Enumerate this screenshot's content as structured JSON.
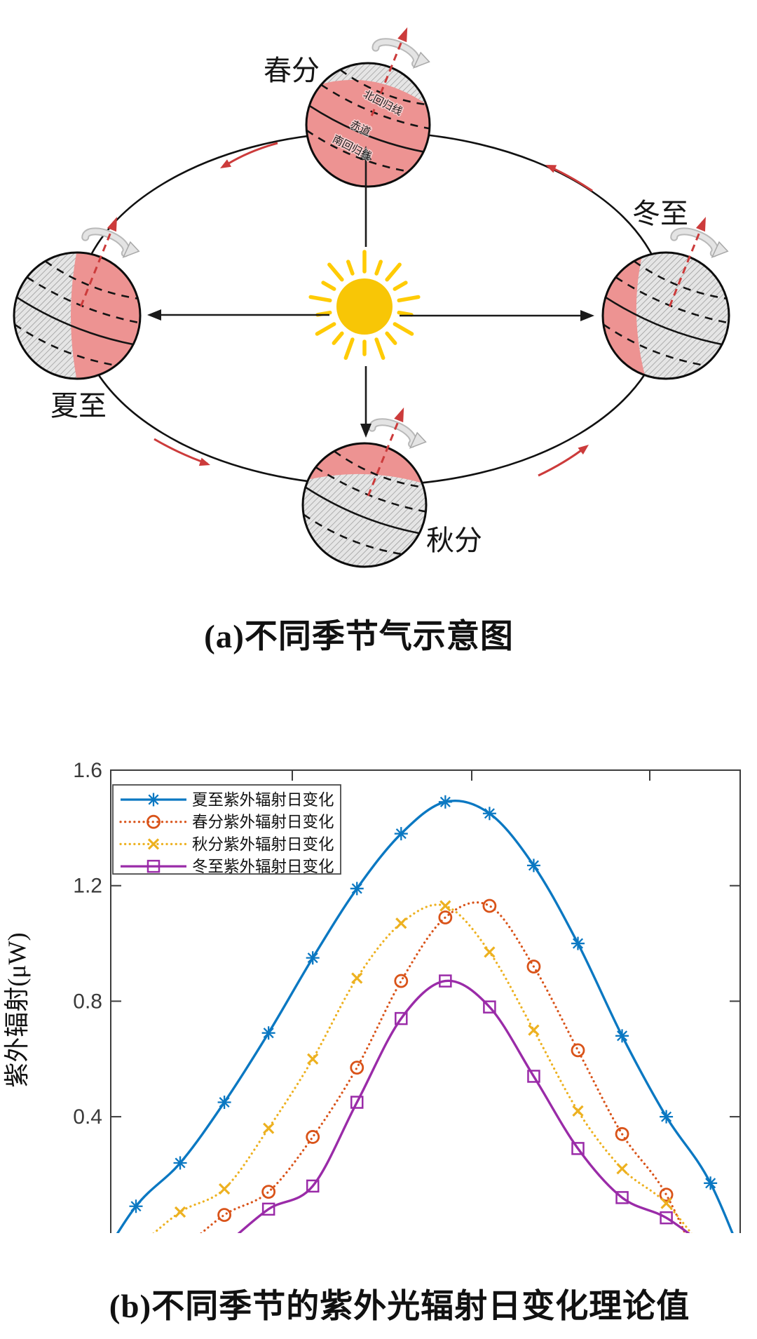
{
  "figure": {
    "caption_a": "(a)不同季节气示意图",
    "caption_b": "(b)不同季节的紫外光辐射日变化理论值"
  },
  "diagram": {
    "seasons": {
      "top": "春分",
      "left": "夏至",
      "right": "冬至",
      "bottom": "秋分"
    },
    "latitude_labels": {
      "tropic_of_cancer": "北回归线",
      "equator": "赤道",
      "tropic_of_capricorn": "南回归线"
    },
    "colors": {
      "day_side_pink": "#ED9392",
      "night_hatch": "#E5E5E5",
      "sun_yellow": "#F8C606",
      "revolution_arrow_red": "#CC3B3B"
    }
  },
  "chart_data": {
    "type": "line",
    "title": "",
    "xlabel": "",
    "ylabel": "紫外辐射(μW)",
    "ylim": [
      0,
      1.6
    ],
    "yticks": [
      1.6,
      1.2,
      0.8,
      0.4
    ],
    "grid": false,
    "box": true,
    "legend_position": "top-left",
    "x_unit": "time of day (hour, axis cropped in image)",
    "series": [
      {
        "name": "夏至紫外辐射日变化",
        "color": "#0B78C2",
        "line": "solid",
        "marker": "asterisk",
        "x": [
          6,
          7,
          8,
          9,
          10,
          11,
          12,
          13,
          14,
          15,
          16,
          17,
          18,
          19
        ],
        "values": [
          0.09,
          0.24,
          0.45,
          0.69,
          0.95,
          1.19,
          1.38,
          1.49,
          1.45,
          1.27,
          1.0,
          0.68,
          0.4,
          0.17
        ]
      },
      {
        "name": "春分紫外辐射日变化",
        "color": "#D95319",
        "line": "dotted",
        "marker": "circle",
        "x": [
          8,
          9,
          10,
          11,
          12,
          13,
          14,
          15,
          16,
          17,
          18
        ],
        "values": [
          0.06,
          0.14,
          0.33,
          0.57,
          0.87,
          1.09,
          1.13,
          0.92,
          0.63,
          0.34,
          0.13
        ]
      },
      {
        "name": "秋分紫外辐射日变化",
        "color": "#EDB120",
        "line": "dotted",
        "marker": "x",
        "x": [
          7,
          8,
          9,
          10,
          11,
          12,
          13,
          14,
          15,
          16,
          17,
          18
        ],
        "values": [
          0.07,
          0.15,
          0.36,
          0.6,
          0.88,
          1.07,
          1.13,
          0.97,
          0.7,
          0.42,
          0.22,
          0.1
        ]
      },
      {
        "name": "冬至紫外辐射日变化",
        "color": "#9A2BA8",
        "line": "solid",
        "marker": "square",
        "x": [
          9,
          10,
          11,
          12,
          13,
          14,
          15,
          16,
          17,
          18
        ],
        "values": [
          0.08,
          0.16,
          0.45,
          0.74,
          0.87,
          0.78,
          0.54,
          0.29,
          0.12,
          0.05
        ]
      }
    ]
  }
}
